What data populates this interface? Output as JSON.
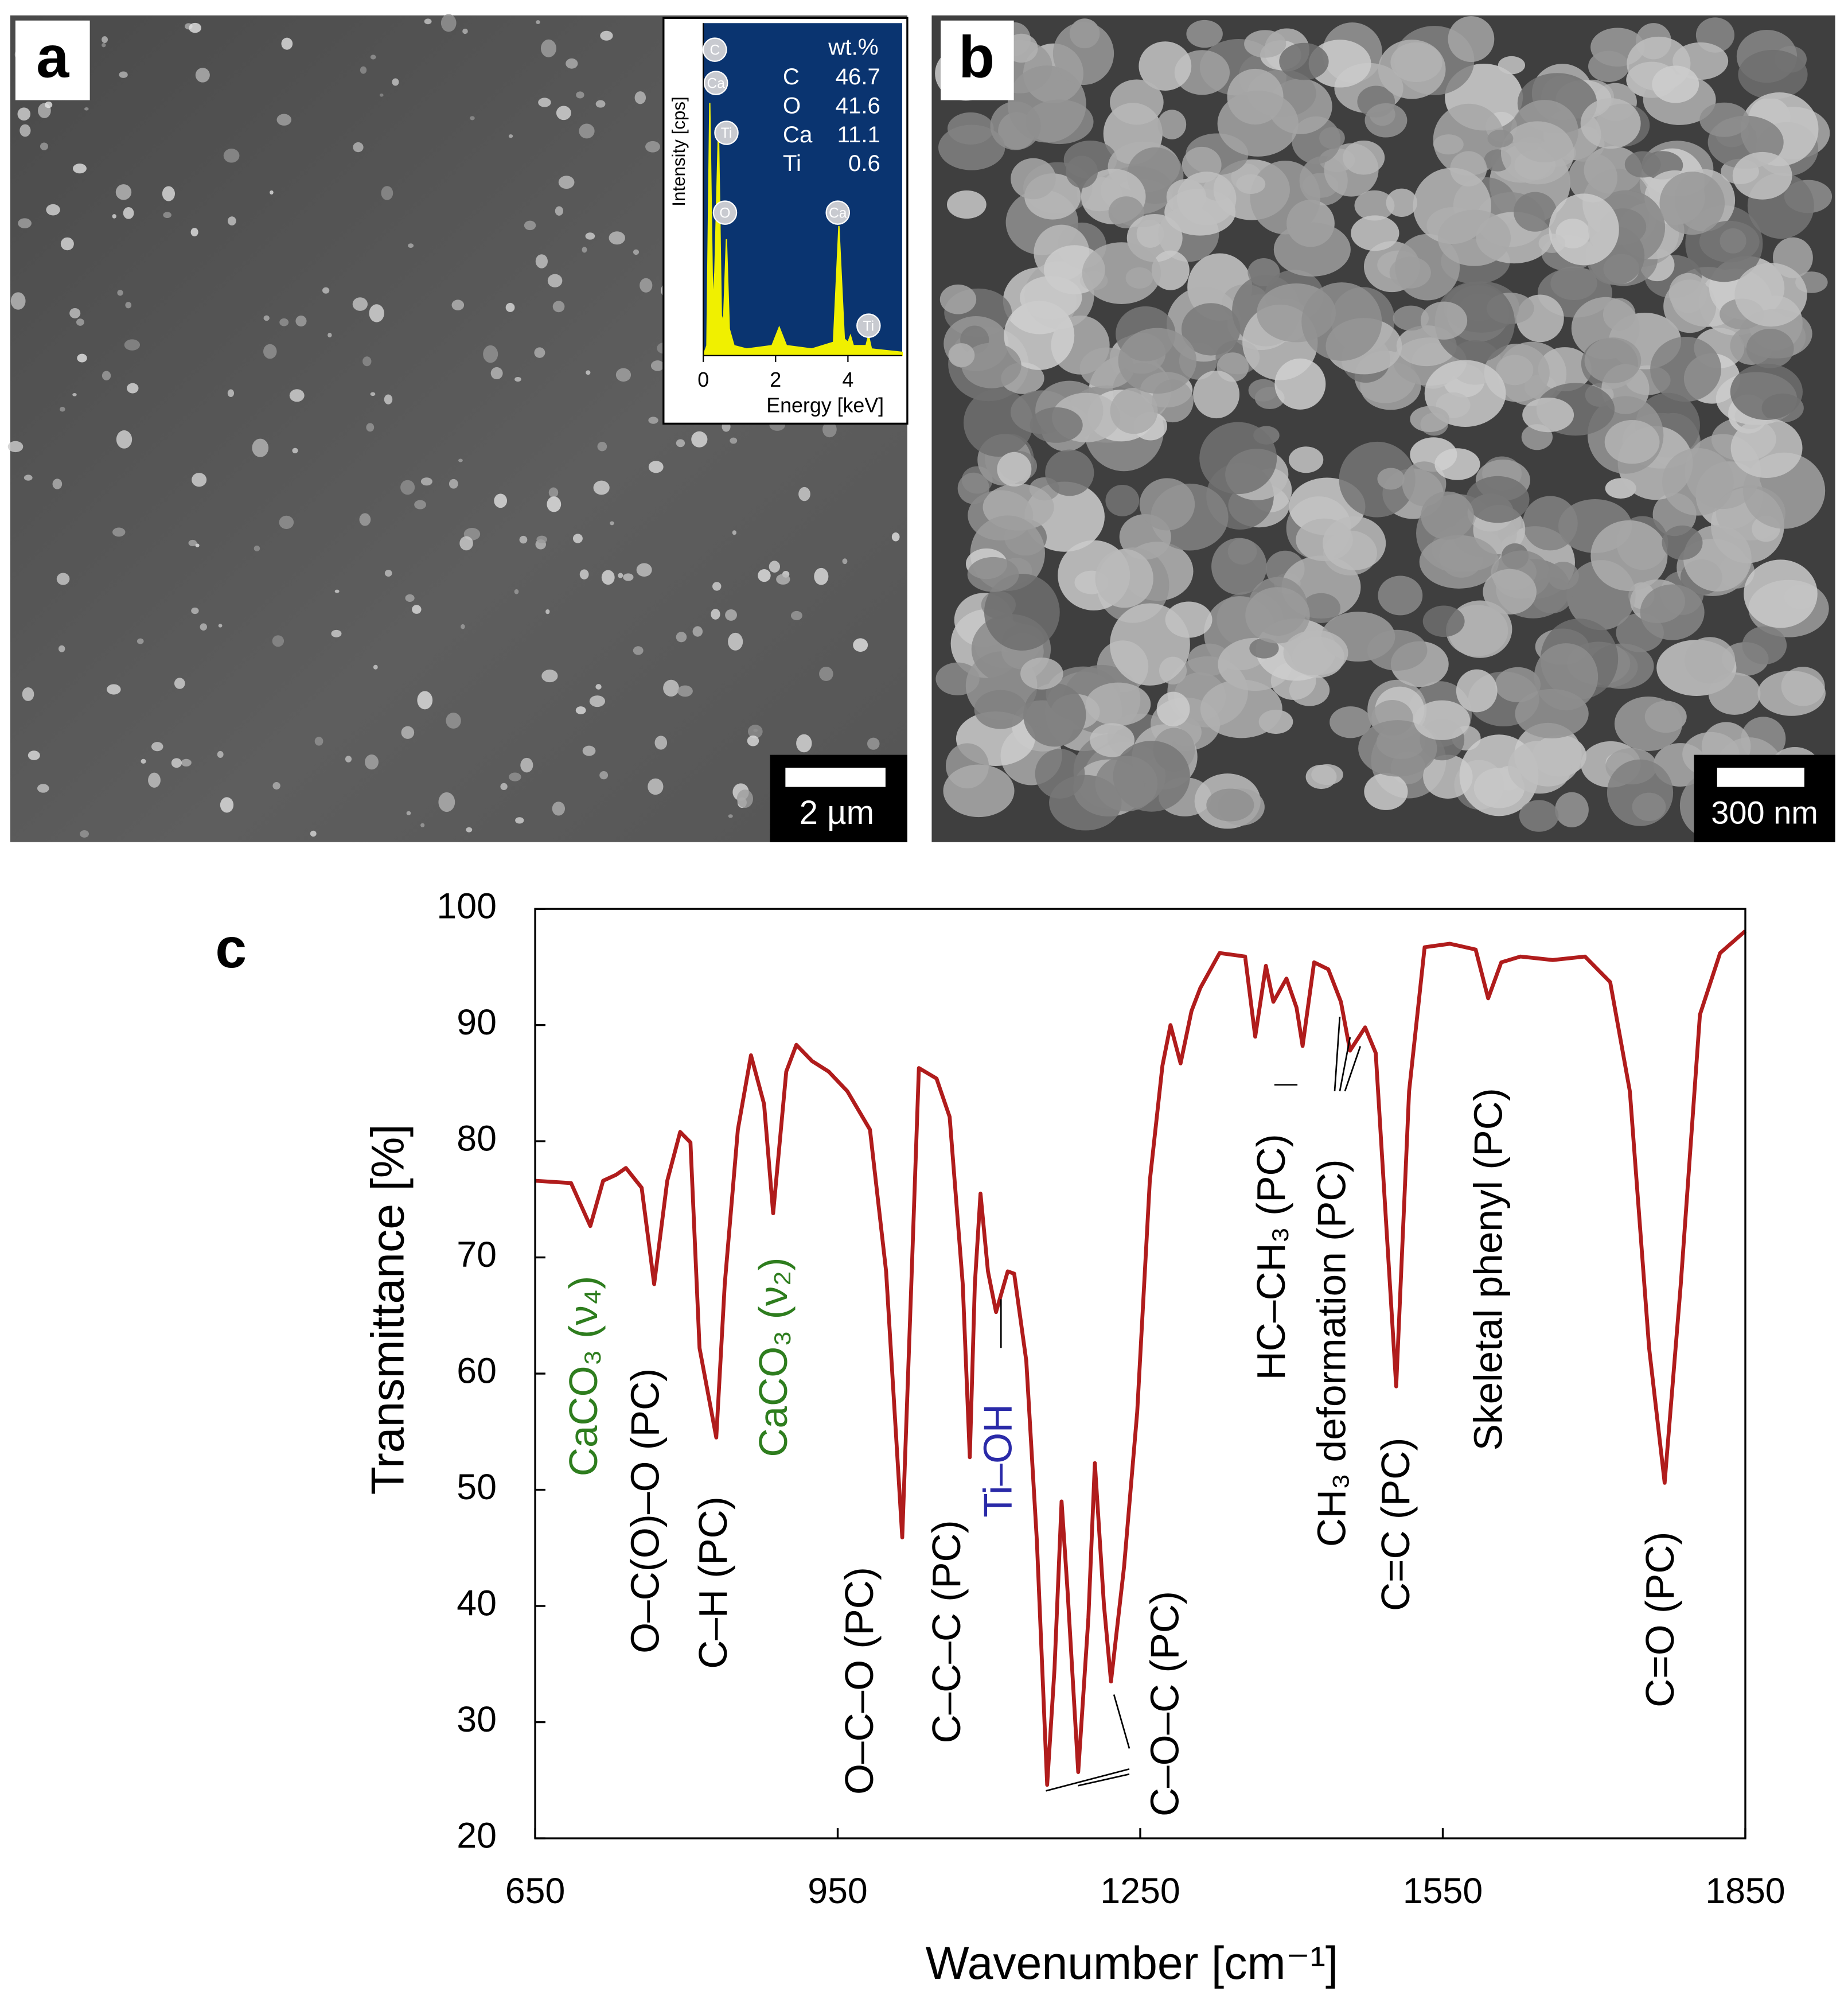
{
  "panels": {
    "a": {
      "label": "a",
      "scale_bar": "2 µm"
    },
    "b": {
      "label": "b",
      "scale_bar": "300 nm"
    },
    "c": {
      "label": "c"
    }
  },
  "chart_data": [
    {
      "type": "line",
      "xlabel": "Energy [keV]",
      "ylabel": "Intensity [cps]",
      "color": "#f0f000",
      "background": "#0a3470",
      "x": [
        0,
        0.1,
        0.18,
        0.26,
        0.32,
        0.42,
        0.5,
        0.56,
        0.64,
        0.72,
        0.85,
        1.2,
        1.9,
        2.1,
        2.3,
        3.0,
        3.6,
        3.75,
        3.9,
        4.0,
        4.07,
        4.15,
        4.5,
        4.57,
        4.65,
        5.5
      ],
      "values": [
        0,
        3,
        76,
        15,
        25,
        68,
        12,
        10,
        35,
        8,
        3,
        2,
        3,
        8.5,
        3,
        2,
        4,
        39,
        5,
        4,
        6,
        3,
        3,
        6,
        2,
        1
      ],
      "xlim": [
        0,
        5.5
      ],
      "xticks": [
        0,
        2,
        4
      ],
      "ylim": [
        0,
        100
      ],
      "peak_labels": [
        {
          "label": "C",
          "x": 0.32,
          "y": 92
        },
        {
          "label": "Ca",
          "x": 0.35,
          "y": 82
        },
        {
          "label": "Ti",
          "x": 0.64,
          "y": 67
        },
        {
          "label": "O",
          "x": 0.6,
          "y": 43
        },
        {
          "label": "Ca",
          "x": 3.72,
          "y": 43
        },
        {
          "label": "Ti",
          "x": 4.57,
          "y": 9
        }
      ],
      "composition": {
        "header": "wt.%",
        "rows": [
          [
            "C",
            46.7
          ],
          [
            "O",
            41.6
          ],
          [
            "Ca",
            11.1
          ],
          [
            "Ti",
            0.6
          ]
        ]
      }
    },
    {
      "type": "line",
      "xlabel": "Wavenumber [cm⁻¹]",
      "ylabel": "Transmittance [%]",
      "color": "#b01c1c",
      "x": [
        650,
        685.6,
        704.7,
        717.4,
        730,
        740,
        755.6,
        768,
        781,
        793.8,
        804,
        813,
        829.6,
        838,
        851,
        864,
        877,
        886,
        899,
        909,
        924.6,
        941,
        959.6,
        982,
        998,
        1014,
        1023,
        1030.5,
        1048,
        1061,
        1074,
        1081,
        1086,
        1091.6,
        1099,
        1107,
        1118.6,
        1125,
        1137,
        1147.5,
        1157.7,
        1165,
        1172,
        1178,
        1188.5,
        1198.6,
        1205,
        1214,
        1221,
        1234,
        1247,
        1259.5,
        1272,
        1280,
        1290,
        1300.8,
        1309.6,
        1328.7,
        1354,
        1364,
        1374.6,
        1382,
        1395,
        1405,
        1411,
        1422.4,
        1436.5,
        1449,
        1458,
        1473,
        1483.5,
        1493.6,
        1503.8,
        1516.6,
        1532,
        1557,
        1582.6,
        1595,
        1608,
        1627,
        1659,
        1691,
        1716,
        1735.5,
        1754.6,
        1770,
        1786,
        1805,
        1825,
        1850
      ],
      "values": [
        76.6,
        76.4,
        72.7,
        76.6,
        77.1,
        77.7,
        76,
        67.7,
        76.6,
        80.8,
        79.9,
        62.2,
        54.5,
        67.7,
        81,
        87.4,
        83.2,
        73.8,
        86,
        88.3,
        86.9,
        86,
        84.3,
        81,
        68.8,
        45.9,
        67.7,
        86.3,
        85.4,
        82.1,
        67.7,
        52.8,
        67.7,
        75.5,
        68.8,
        65.3,
        68.8,
        68.6,
        61.1,
        45.6,
        24.6,
        34.6,
        49,
        41.2,
        25.7,
        39,
        52.3,
        40.1,
        33.5,
        43.4,
        56.7,
        76.6,
        86.5,
        90,
        86.7,
        91.2,
        93.2,
        96.2,
        95.9,
        89,
        95.1,
        92,
        94,
        91.5,
        88.2,
        95.4,
        94.8,
        92,
        87.8,
        89.8,
        87.6,
        73.3,
        58.9,
        84.3,
        96.7,
        97,
        96.5,
        92.3,
        95.4,
        95.9,
        95.6,
        95.9,
        93.7,
        84.3,
        62.2,
        50.6,
        67.7,
        90.9,
        96.2,
        98.1
      ],
      "xlim": [
        650,
        1850
      ],
      "xticks": [
        650,
        950,
        1250,
        1550,
        1850
      ],
      "ylim": [
        20,
        100
      ],
      "yticks": [
        20,
        30,
        40,
        50,
        60,
        70,
        80,
        90,
        100
      ],
      "annotations": [
        {
          "text": "CaCO₃ (ν₄)",
          "color": "#2e7d1e"
        },
        {
          "text": "O–C(O)–O (PC)",
          "color": "#000000"
        },
        {
          "text": "C–H (PC)",
          "color": "#000000"
        },
        {
          "text": "CaCO₃ (ν₂)",
          "color": "#2e7d1e"
        },
        {
          "text": "O–C–O (PC)",
          "color": "#000000"
        },
        {
          "text": "C–C–C (PC)",
          "color": "#000000"
        },
        {
          "text": "Ti–OH",
          "color": "#2a2aa8"
        },
        {
          "text": "C–O–C (PC)",
          "color": "#000000"
        },
        {
          "text": "HC–CH₃ (PC)",
          "color": "#000000"
        },
        {
          "text": "CH₃ deformation (PC)",
          "color": "#000000"
        },
        {
          "text": "C=C (PC)",
          "color": "#000000"
        },
        {
          "text": "Skeletal phenyl (PC)",
          "color": "#000000"
        },
        {
          "text": "C=O (PC)",
          "color": "#000000"
        }
      ]
    }
  ]
}
